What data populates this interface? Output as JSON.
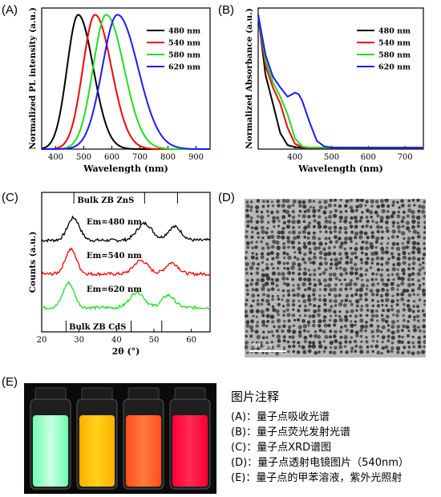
{
  "panels": {
    "A": {
      "letter": "(A)"
    },
    "B": {
      "letter": "(B)"
    },
    "C": {
      "letter": "(C)"
    },
    "D": {
      "letter": "(D)",
      "scalebar_label": "50 nm"
    },
    "E": {
      "letter": "(E)"
    }
  },
  "caption": {
    "title": "图片注释",
    "lines": [
      "(A)：量子点吸收光谱",
      "(B)：量子点荧光发射光谱",
      "(C)：量子点XRD谱图",
      "(D)：量子点透射电镜图片（540nm）",
      "(E)：量子点的甲苯溶液，紫外光照射"
    ]
  },
  "chart_data": [
    {
      "type": "line",
      "panel": "A",
      "xlabel": "Wavelength (nm)",
      "ylabel": "Normalized PL intensity (a.u.)",
      "xlim": [
        350,
        950
      ],
      "ylim": [
        0,
        1.05
      ],
      "x_ticks": [
        400,
        500,
        600,
        700,
        800,
        900
      ],
      "legend_position": "top-right",
      "series": [
        {
          "name": "480 nm",
          "color": "#000000",
          "peak": 480,
          "fwhm": 110
        },
        {
          "name": "540 nm",
          "color": "#ff0000",
          "peak": 540,
          "fwhm": 120
        },
        {
          "name": "580 nm",
          "color": "#22dd22",
          "peak": 580,
          "fwhm": 130
        },
        {
          "name": "620 nm",
          "color": "#1a1aff",
          "peak": 620,
          "fwhm": 150
        }
      ]
    },
    {
      "type": "line",
      "panel": "B",
      "xlabel": "Wavelength (nm)",
      "ylabel": "Normalized Absorbance (a.u.)",
      "xlim": [
        300,
        750
      ],
      "ylim": [
        0,
        1.05
      ],
      "x_ticks": [
        400,
        500,
        600,
        700
      ],
      "legend_position": "top-right",
      "series": [
        {
          "name": "480 nm",
          "color": "#000000",
          "x": [
            300,
            320,
            340,
            360,
            380,
            400,
            420,
            440,
            500,
            600,
            750
          ],
          "y": [
            1.0,
            0.55,
            0.34,
            0.12,
            0.03,
            0.015,
            0.01,
            0.01,
            0.01,
            0.01,
            0.01
          ]
        },
        {
          "name": "540 nm",
          "color": "#ff0000",
          "x": [
            300,
            320,
            340,
            360,
            380,
            400,
            420,
            440,
            500,
            600,
            750
          ],
          "y": [
            1.0,
            0.62,
            0.46,
            0.34,
            0.16,
            0.04,
            0.015,
            0.01,
            0.01,
            0.01,
            0.01
          ]
        },
        {
          "name": "580 nm",
          "color": "#22dd22",
          "x": [
            300,
            320,
            340,
            360,
            380,
            400,
            420,
            440,
            500,
            600,
            750
          ],
          "y": [
            1.0,
            0.66,
            0.5,
            0.39,
            0.26,
            0.08,
            0.02,
            0.012,
            0.01,
            0.01,
            0.01
          ]
        },
        {
          "name": "620 nm",
          "color": "#1a1aff",
          "x": [
            300,
            320,
            340,
            360,
            380,
            400,
            410,
            420,
            440,
            460,
            480,
            500,
            600,
            750
          ],
          "y": [
            1.0,
            0.7,
            0.54,
            0.46,
            0.39,
            0.42,
            0.41,
            0.36,
            0.2,
            0.06,
            0.02,
            0.012,
            0.01,
            0.01
          ]
        }
      ]
    },
    {
      "type": "line",
      "panel": "C",
      "xlabel": "2θ (°)",
      "ylabel": "Counts (a.u.)",
      "xlim": [
        20,
        65
      ],
      "x_ticks": [
        20,
        30,
        40,
        50,
        60
      ],
      "reference_top": {
        "label": "Bulk ZB ZnS",
        "lines": [
          28.6,
          47.5,
          56.3
        ]
      },
      "reference_bottom": {
        "label": "Bulk ZB CdS",
        "lines": [
          26.5,
          43.9,
          52.1
        ]
      },
      "series": [
        {
          "name": "Em=480 nm",
          "color": "#000000",
          "offset": 2.0,
          "peaks": [
            [
              28.5,
              1.0,
              1.6
            ],
            [
              47.5,
              0.75,
              2.0
            ],
            [
              55.5,
              0.6,
              1.8
            ]
          ]
        },
        {
          "name": "Em=540 nm",
          "color": "#ff0000",
          "offset": 1.0,
          "peaks": [
            [
              27.8,
              1.1,
              1.5
            ],
            [
              46.5,
              0.6,
              1.9
            ],
            [
              54.8,
              0.5,
              1.7
            ]
          ]
        },
        {
          "name": "Em=620 nm",
          "color": "#22dd22",
          "offset": 0.0,
          "peaks": [
            [
              27.2,
              1.1,
              1.5
            ],
            [
              45.5,
              0.7,
              1.9
            ],
            [
              53.8,
              0.55,
              1.7
            ]
          ]
        }
      ]
    }
  ],
  "vials": [
    {
      "name": "vial-480",
      "color": "#c8ffe0",
      "glow": "#6fffb0"
    },
    {
      "name": "vial-540",
      "color": "#ffd21a",
      "glow": "#ffb000"
    },
    {
      "name": "vial-580",
      "color": "#ff7a40",
      "glow": "#ff4f1a"
    },
    {
      "name": "vial-620",
      "color": "#ff2a55",
      "glow": "#ff0033"
    }
  ]
}
